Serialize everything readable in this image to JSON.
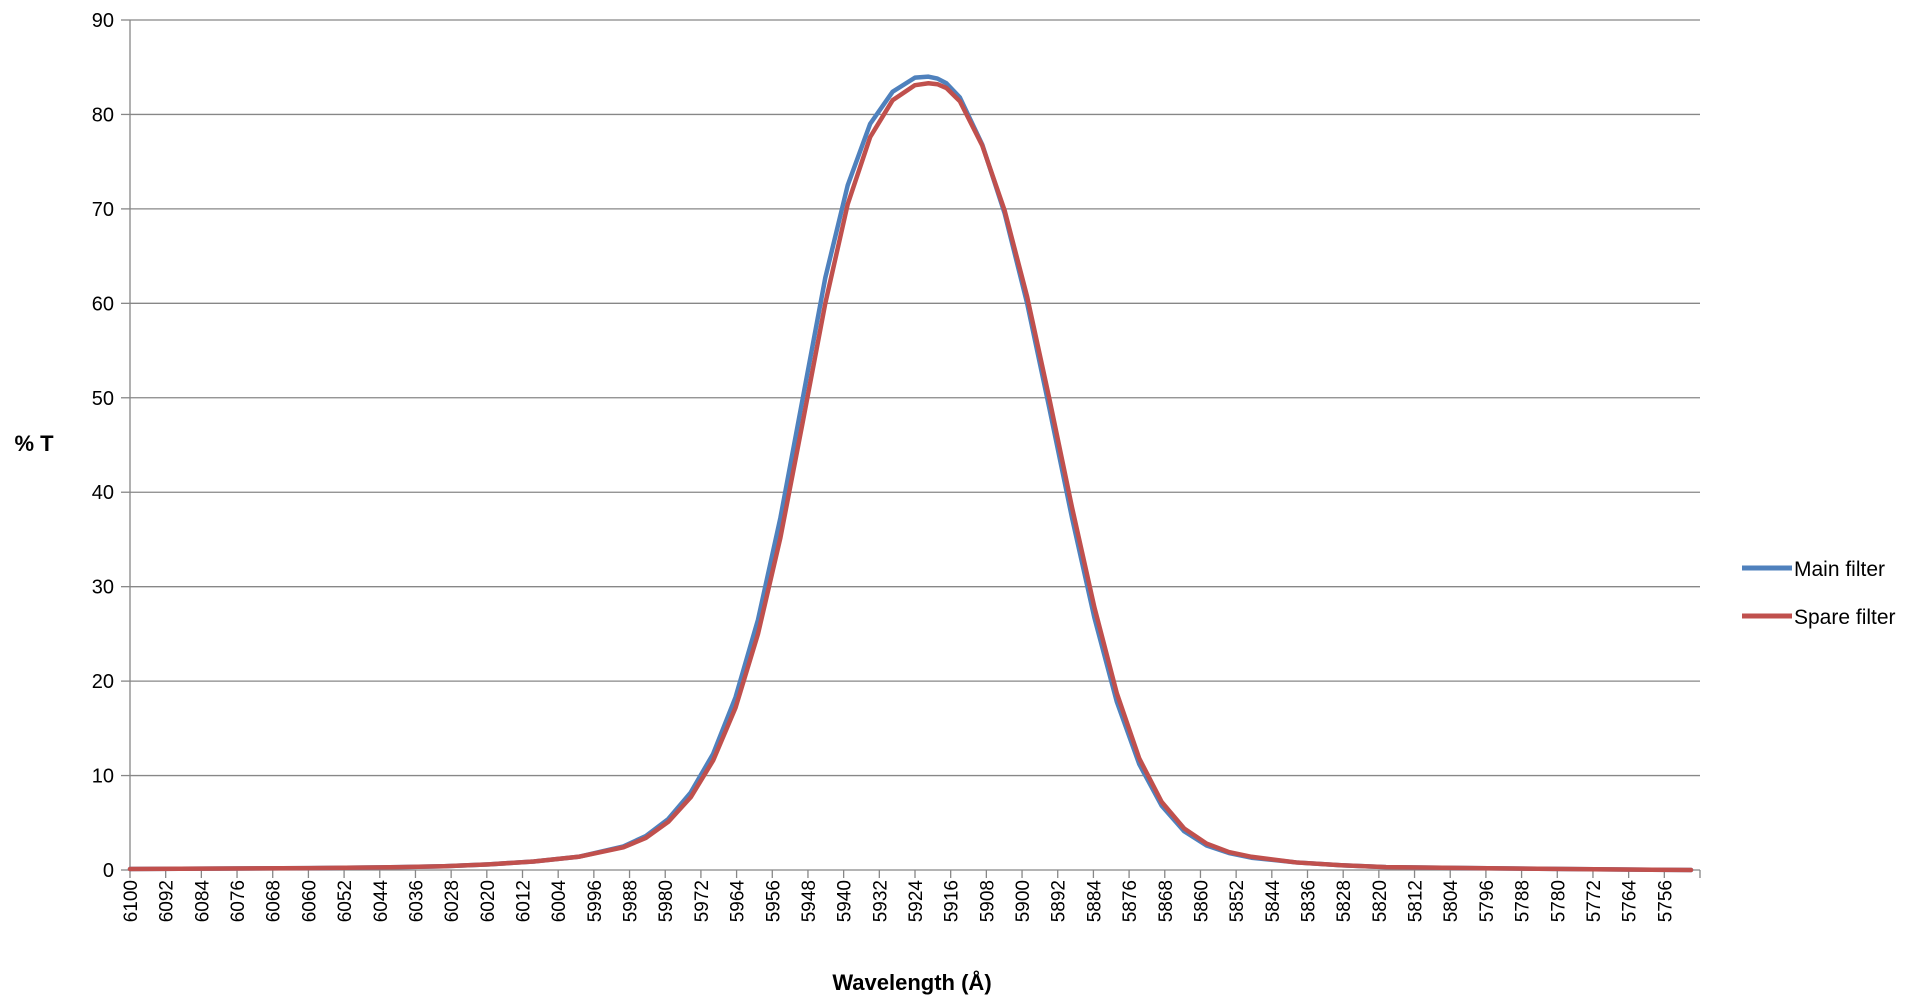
{
  "chart_data": {
    "type": "line",
    "title": "",
    "xlabel": "Wavelength (Å)",
    "ylabel": "% T",
    "xlim": [
      6100,
      5750
    ],
    "x_reversed": true,
    "ylim": [
      0,
      90
    ],
    "yticks": [
      0,
      10,
      20,
      30,
      40,
      50,
      60,
      70,
      80,
      90
    ],
    "xticks": [
      "6100",
      "6092",
      "6084",
      "6076",
      "6068",
      "6060",
      "6052",
      "6044",
      "6036",
      "6028",
      "6020",
      "6012",
      "6004",
      "5996",
      "5988",
      "5980",
      "5972",
      "5964",
      "5956",
      "5948",
      "5940",
      "5932",
      "5924",
      "5916",
      "5908",
      "5900",
      "5892",
      "5884",
      "5876",
      "5868",
      "5860",
      "5852",
      "5844",
      "5836",
      "5828",
      "5820",
      "5812",
      "5804",
      "5796",
      "5788",
      "5780",
      "5772",
      "5764",
      "5756"
    ],
    "grid": "horizontal",
    "legend_position": "right",
    "series": [
      {
        "name": "Main filter",
        "color": "#4f81bd",
        "x": [
          6100,
          6060,
          6040,
          6030,
          6020,
          6010,
          6000,
          5990,
          5985,
          5980,
          5975,
          5970,
          5965,
          5960,
          5955,
          5950,
          5945,
          5940,
          5935,
          5930,
          5925,
          5922,
          5920,
          5918,
          5915,
          5910,
          5905,
          5900,
          5895,
          5890,
          5885,
          5880,
          5875,
          5870,
          5865,
          5860,
          5855,
          5850,
          5840,
          5830,
          5820,
          5800,
          5780,
          5752
        ],
        "values": [
          0.1,
          0.2,
          0.3,
          0.4,
          0.6,
          0.9,
          1.4,
          2.5,
          3.6,
          5.4,
          8.2,
          12.3,
          18.3,
          26.5,
          37.3,
          50.0,
          62.7,
          72.5,
          79.0,
          82.4,
          83.9,
          84.0,
          83.8,
          83.3,
          81.8,
          76.8,
          69.5,
          60.0,
          48.8,
          37.3,
          26.7,
          17.8,
          11.2,
          6.8,
          4.1,
          2.6,
          1.8,
          1.3,
          0.8,
          0.5,
          0.3,
          0.2,
          0.1,
          0.0
        ]
      },
      {
        "name": "Spare filter",
        "color": "#c0504d",
        "x": [
          6100,
          6060,
          6040,
          6030,
          6020,
          6010,
          6000,
          5990,
          5985,
          5980,
          5975,
          5970,
          5965,
          5960,
          5955,
          5950,
          5945,
          5940,
          5935,
          5930,
          5925,
          5922,
          5920,
          5918,
          5915,
          5910,
          5905,
          5900,
          5895,
          5890,
          5885,
          5880,
          5875,
          5870,
          5865,
          5860,
          5855,
          5850,
          5840,
          5830,
          5820,
          5800,
          5780,
          5752
        ],
        "values": [
          0.1,
          0.2,
          0.3,
          0.4,
          0.6,
          0.9,
          1.4,
          2.4,
          3.4,
          5.1,
          7.7,
          11.6,
          17.2,
          25.0,
          35.2,
          47.5,
          60.0,
          70.5,
          77.6,
          81.5,
          83.1,
          83.3,
          83.2,
          82.8,
          81.4,
          76.7,
          69.8,
          60.7,
          49.8,
          38.4,
          27.8,
          18.7,
          11.8,
          7.2,
          4.4,
          2.8,
          1.9,
          1.4,
          0.8,
          0.5,
          0.3,
          0.2,
          0.1,
          0.0
        ]
      }
    ]
  }
}
